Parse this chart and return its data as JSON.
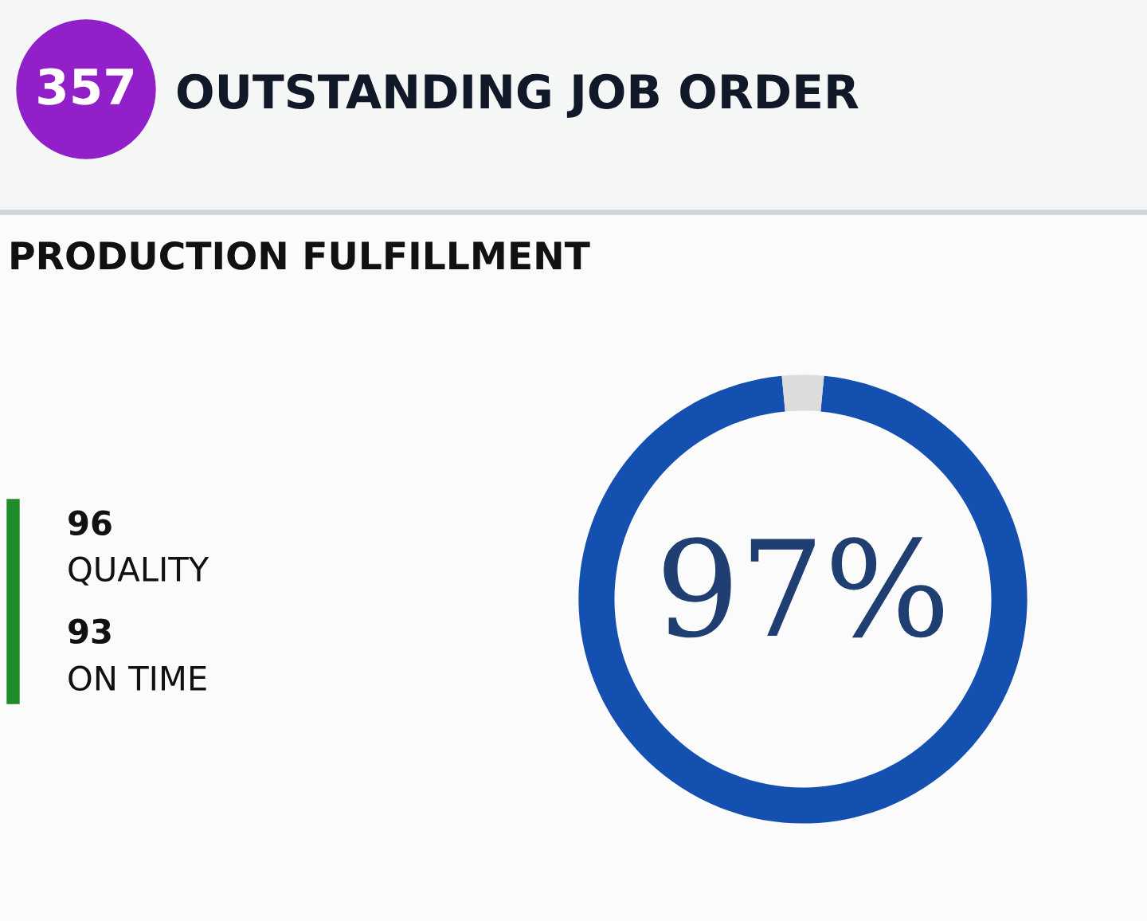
{
  "chart_data": [
    {
      "type": "other",
      "title": "OUTSTANDING JOB ORDER",
      "annotations": [
        "357"
      ],
      "color": "#9120c8"
    },
    {
      "type": "donut",
      "title": "PRODUCTION FULFILLMENT",
      "categories": [
        null,
        null
      ],
      "values": [
        97,
        3
      ],
      "colors": [
        "#1450b0",
        "#dcdcdc"
      ],
      "annotations": [
        "97%"
      ]
    },
    {
      "type": "other",
      "annotations": [
        "96",
        "QUALITY",
        "93",
        "ON TIME"
      ],
      "color": "#1e8c2a"
    }
  ]
}
